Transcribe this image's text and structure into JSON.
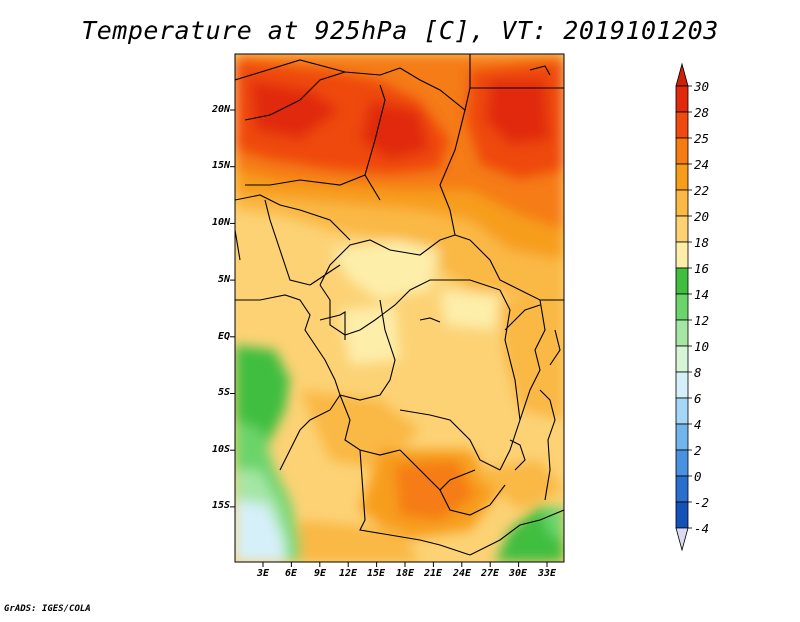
{
  "title": "Temperature at 925hPa [C], VT: 2019101203",
  "footer": "GrADS: IGES/COLA",
  "map": {
    "lat_labels": [
      "20N",
      "15N",
      "10N",
      "5N",
      "EQ",
      "5S",
      "10S",
      "15S"
    ],
    "lon_labels": [
      "3E",
      "6E",
      "9E",
      "12E",
      "15E",
      "18E",
      "21E",
      "24E",
      "27E",
      "30E",
      "33E"
    ]
  },
  "colorbar": {
    "labels": [
      "30",
      "28",
      "25",
      "24",
      "22",
      "20",
      "18",
      "16",
      "14",
      "12",
      "10",
      "8",
      "6",
      "4",
      "2",
      "0",
      "-2",
      "-4"
    ],
    "colors": [
      "#e12a0d",
      "#ef4a0f",
      "#f57b12",
      "#f79d1c",
      "#fab844",
      "#fcd275",
      "#fdeeaa",
      "#3fbe3f",
      "#6bd46b",
      "#a5e6a5",
      "#d5f5d5",
      "#d6f0fa",
      "#a6d6f5",
      "#72b4eb",
      "#4a92e0",
      "#2a6ed0",
      "#1452b8",
      "#0d3795",
      "#08206a"
    ],
    "top_arrow_color": "#cc2208",
    "bottom_arrow_color": "#dcdaf2"
  }
}
